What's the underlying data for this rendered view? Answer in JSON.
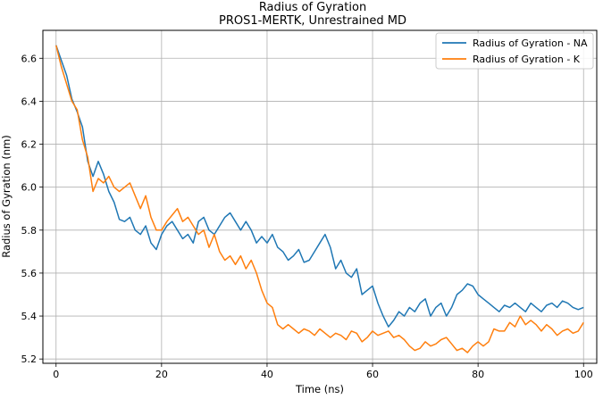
{
  "chart_data": {
    "type": "line",
    "title": "Radius of Gyration",
    "subtitle": "PROS1-MERTK, Unrestrained MD",
    "xlabel": "Time (ns)",
    "ylabel": "Radius of Gyration (nm)",
    "xlim": [
      -2.5,
      102.5
    ],
    "ylim": [
      5.18,
      6.73
    ],
    "xticks": [
      0,
      20,
      40,
      60,
      80,
      100
    ],
    "xtick_labels": [
      "0",
      "20",
      "40",
      "60",
      "80",
      "100"
    ],
    "yticks": [
      5.2,
      5.4,
      5.6,
      5.8,
      6.0,
      6.2,
      6.4,
      6.6
    ],
    "ytick_labels": [
      "5.2",
      "5.4",
      "5.6",
      "5.8",
      "6.0",
      "6.2",
      "6.4",
      "6.6"
    ],
    "grid": true,
    "legend_position": "top-right",
    "series": [
      {
        "name": "Radius of Gyration - NA",
        "color": "#1f77b4",
        "x": [
          0,
          1,
          2,
          3,
          4,
          5,
          6,
          7,
          8,
          9,
          10,
          11,
          12,
          13,
          14,
          15,
          16,
          17,
          18,
          19,
          20,
          21,
          22,
          23,
          24,
          25,
          26,
          27,
          28,
          29,
          30,
          31,
          32,
          33,
          34,
          35,
          36,
          37,
          38,
          39,
          40,
          41,
          42,
          43,
          44,
          45,
          46,
          47,
          48,
          49,
          50,
          51,
          52,
          53,
          54,
          55,
          56,
          57,
          58,
          59,
          60,
          61,
          62,
          63,
          64,
          65,
          66,
          67,
          68,
          69,
          70,
          71,
          72,
          73,
          74,
          75,
          76,
          77,
          78,
          79,
          80,
          81,
          82,
          83,
          84,
          85,
          86,
          87,
          88,
          89,
          90,
          91,
          92,
          93,
          94,
          95,
          96,
          97,
          98,
          99,
          100
        ],
        "y": [
          6.66,
          6.59,
          6.52,
          6.41,
          6.35,
          6.28,
          6.12,
          6.05,
          6.12,
          6.06,
          5.98,
          5.93,
          5.85,
          5.84,
          5.86,
          5.8,
          5.78,
          5.82,
          5.74,
          5.71,
          5.78,
          5.82,
          5.84,
          5.8,
          5.76,
          5.78,
          5.74,
          5.84,
          5.86,
          5.8,
          5.78,
          5.82,
          5.86,
          5.88,
          5.84,
          5.8,
          5.84,
          5.8,
          5.74,
          5.77,
          5.74,
          5.78,
          5.72,
          5.7,
          5.66,
          5.68,
          5.71,
          5.65,
          5.66,
          5.7,
          5.74,
          5.78,
          5.72,
          5.62,
          5.66,
          5.6,
          5.58,
          5.62,
          5.5,
          5.52,
          5.54,
          5.46,
          5.4,
          5.35,
          5.38,
          5.42,
          5.4,
          5.44,
          5.42,
          5.46,
          5.48,
          5.4,
          5.44,
          5.46,
          5.4,
          5.44,
          5.5,
          5.52,
          5.55,
          5.54,
          5.5,
          5.48,
          5.46,
          5.44,
          5.42,
          5.45,
          5.44,
          5.46,
          5.44,
          5.42,
          5.46,
          5.44,
          5.42,
          5.45,
          5.46,
          5.44,
          5.47,
          5.46,
          5.44,
          5.43,
          5.44
        ]
      },
      {
        "name": "Radius of Gyration - K",
        "color": "#ff7f0e",
        "x": [
          0,
          1,
          2,
          3,
          4,
          5,
          6,
          7,
          8,
          9,
          10,
          11,
          12,
          13,
          14,
          15,
          16,
          17,
          18,
          19,
          20,
          21,
          22,
          23,
          24,
          25,
          26,
          27,
          28,
          29,
          30,
          31,
          32,
          33,
          34,
          35,
          36,
          37,
          38,
          39,
          40,
          41,
          42,
          43,
          44,
          45,
          46,
          47,
          48,
          49,
          50,
          51,
          52,
          53,
          54,
          55,
          56,
          57,
          58,
          59,
          60,
          61,
          62,
          63,
          64,
          65,
          66,
          67,
          68,
          69,
          70,
          71,
          72,
          73,
          74,
          75,
          76,
          77,
          78,
          79,
          80,
          81,
          82,
          83,
          84,
          85,
          86,
          87,
          88,
          89,
          90,
          91,
          92,
          93,
          94,
          95,
          96,
          97,
          98,
          99,
          100
        ],
        "y": [
          6.66,
          6.56,
          6.48,
          6.4,
          6.36,
          6.22,
          6.14,
          5.98,
          6.04,
          6.02,
          6.05,
          6.0,
          5.98,
          6.0,
          6.02,
          5.96,
          5.9,
          5.96,
          5.86,
          5.8,
          5.8,
          5.84,
          5.87,
          5.9,
          5.84,
          5.86,
          5.82,
          5.78,
          5.8,
          5.72,
          5.78,
          5.7,
          5.66,
          5.68,
          5.64,
          5.68,
          5.62,
          5.66,
          5.6,
          5.52,
          5.46,
          5.44,
          5.36,
          5.34,
          5.36,
          5.34,
          5.32,
          5.34,
          5.33,
          5.31,
          5.34,
          5.32,
          5.3,
          5.32,
          5.31,
          5.29,
          5.33,
          5.32,
          5.28,
          5.3,
          5.33,
          5.31,
          5.32,
          5.33,
          5.3,
          5.31,
          5.29,
          5.26,
          5.24,
          5.25,
          5.28,
          5.26,
          5.27,
          5.29,
          5.3,
          5.27,
          5.24,
          5.25,
          5.23,
          5.26,
          5.28,
          5.26,
          5.28,
          5.34,
          5.33,
          5.33,
          5.37,
          5.35,
          5.4,
          5.36,
          5.38,
          5.36,
          5.33,
          5.36,
          5.34,
          5.31,
          5.33,
          5.34,
          5.32,
          5.33,
          5.37
        ]
      }
    ]
  }
}
